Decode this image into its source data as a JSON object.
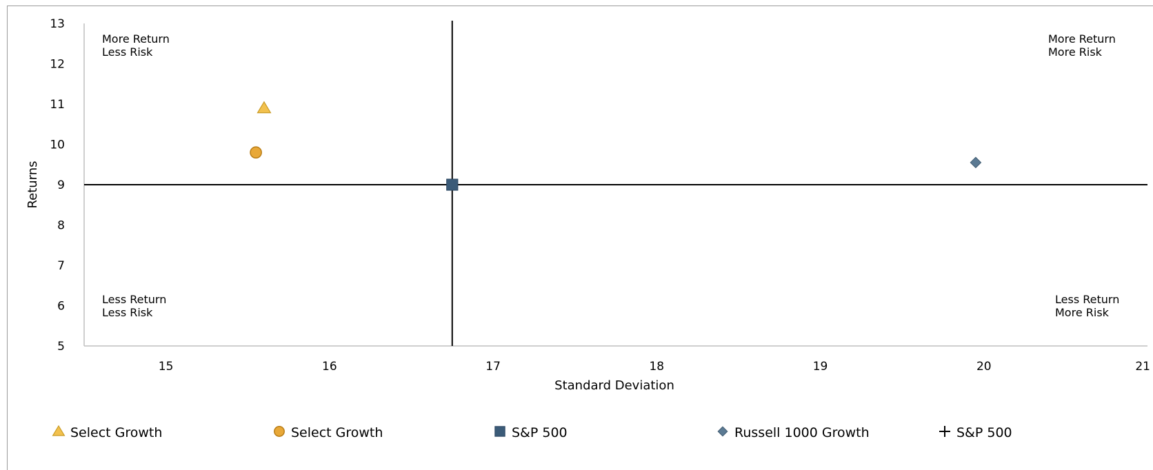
{
  "chart_data": {
    "type": "scatter",
    "xlabel": "Standard Deviation",
    "ylabel": "Returns",
    "xlim": [
      14.5,
      21
    ],
    "ylim": [
      5,
      13
    ],
    "xticks": [
      "15",
      "16",
      "17",
      "18",
      "19",
      "20",
      "21"
    ],
    "yticks": [
      "5",
      "6",
      "7",
      "8",
      "9",
      "10",
      "11",
      "12",
      "13"
    ],
    "crosshair": {
      "x": 16.75,
      "y": 9.0
    },
    "quadrant_labels": {
      "top_left": [
        "More Return",
        "Less Risk"
      ],
      "top_right": [
        "More Return",
        "More Risk"
      ],
      "bottom_left": [
        "Less Return",
        "Less Risk"
      ],
      "bottom_right": [
        "Less Return",
        "More Risk"
      ]
    },
    "series": [
      {
        "name": "Select Growth",
        "marker": "triangle",
        "color": "#F2C14E",
        "x": 15.6,
        "y": 10.9
      },
      {
        "name": "Select Growth",
        "marker": "circle",
        "color": "#E8A838",
        "x": 15.55,
        "y": 9.8
      },
      {
        "name": "S&P 500",
        "marker": "square",
        "color": "#3B5B78",
        "x": 16.75,
        "y": 9.0
      },
      {
        "name": "Russell 1000 Growth",
        "marker": "diamond",
        "color": "#5B7A93",
        "x": 19.95,
        "y": 9.55
      },
      {
        "name": "S&P 500",
        "marker": "plus",
        "color": "#000000"
      }
    ],
    "legend_position": "bottom",
    "grid": false
  }
}
